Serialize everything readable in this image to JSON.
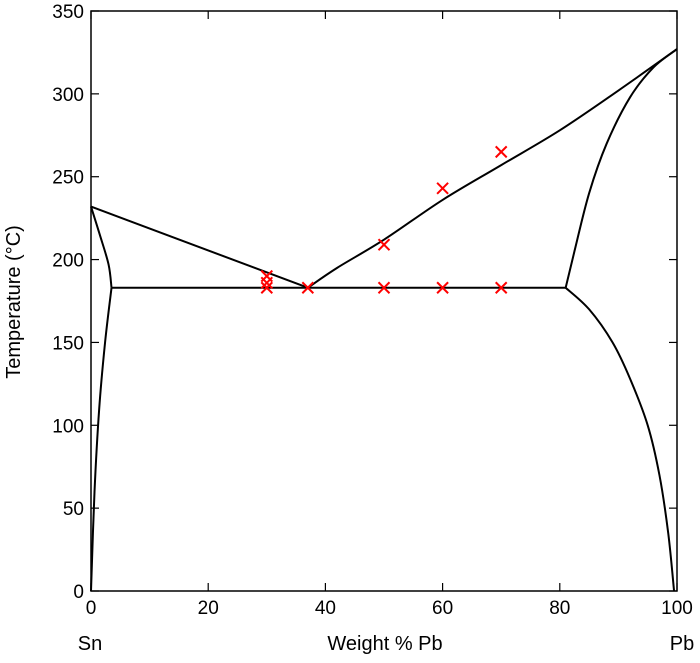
{
  "chart_data": {
    "type": "line",
    "title": "",
    "xlabel": "Weight % Pb",
    "ylabel": "Temperature (°C)",
    "xlim": [
      0,
      100
    ],
    "ylim": [
      0,
      350
    ],
    "x_ticks": [
      0,
      20,
      40,
      60,
      80,
      100
    ],
    "y_ticks": [
      0,
      50,
      100,
      150,
      200,
      250,
      300,
      350
    ],
    "grid": false,
    "left_end_label": "Sn",
    "right_end_label": "Pb",
    "colors": {
      "phase_lines": "#000000",
      "markers": "#ff0000"
    },
    "series": [
      {
        "type": "line",
        "points": [
          [
            0,
            232
          ],
          [
            37,
            183
          ]
        ]
      },
      {
        "type": "line",
        "points": [
          [
            37,
            183
          ],
          [
            42,
            195
          ],
          [
            50,
            212
          ],
          [
            60,
            236
          ],
          [
            70,
            257
          ],
          [
            80,
            278
          ],
          [
            90,
            302
          ],
          [
            100,
            327
          ]
        ]
      },
      {
        "type": "line",
        "points": [
          [
            3.5,
            183
          ],
          [
            81,
            183
          ]
        ]
      },
      {
        "type": "line",
        "points": [
          [
            0,
            232
          ],
          [
            1.5,
            215
          ],
          [
            3,
            197
          ],
          [
            3.5,
            183
          ]
        ]
      },
      {
        "type": "line",
        "points": [
          [
            0,
            0
          ],
          [
            0.6,
            60
          ],
          [
            1.4,
            110
          ],
          [
            2.4,
            150
          ],
          [
            3.5,
            183
          ]
        ]
      },
      {
        "type": "line",
        "points": [
          [
            81,
            183
          ],
          [
            82.5,
            205
          ],
          [
            85,
            240
          ],
          [
            88,
            270
          ],
          [
            92,
            298
          ],
          [
            96,
            316
          ],
          [
            100,
            327
          ]
        ]
      },
      {
        "type": "line",
        "points": [
          [
            81,
            183
          ],
          [
            85,
            170
          ],
          [
            89,
            150
          ],
          [
            92,
            128
          ],
          [
            95,
            100
          ],
          [
            97,
            70
          ],
          [
            98.5,
            35
          ],
          [
            99.5,
            0
          ]
        ]
      },
      {
        "type": "scatter",
        "marker": "x",
        "points": [
          [
            30,
            190
          ],
          [
            30,
            186
          ],
          [
            30,
            183
          ],
          [
            37,
            183
          ],
          [
            50,
            183
          ],
          [
            60,
            183
          ],
          [
            70,
            183
          ],
          [
            50,
            209
          ],
          [
            60,
            243
          ],
          [
            70,
            265
          ]
        ]
      }
    ]
  }
}
